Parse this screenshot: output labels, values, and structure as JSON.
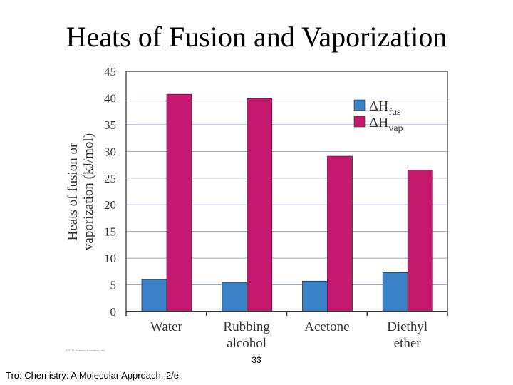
{
  "slide": {
    "title": "Heats of Fusion and Vaporization",
    "slide_number": "33",
    "footer": "Tro: Chemistry: A Molecular Approach, 2/e",
    "copyright": "© 2011 Pearson Education, Inc."
  },
  "colors": {
    "fus": "#3a82c8",
    "vap": "#c4196e",
    "grid": "#9aa9c8",
    "plot_bg": "#ffffff"
  },
  "chart_data": {
    "type": "bar",
    "ylabel_lines": [
      "Heats of fusion or",
      "vaporization (kJ/mol)"
    ],
    "ylim": [
      0,
      45
    ],
    "yticks": [
      0,
      5,
      10,
      15,
      20,
      25,
      30,
      35,
      40,
      45
    ],
    "grid": true,
    "legend_position": "top-right",
    "categories": [
      [
        "Water"
      ],
      [
        "Rubbing",
        "alcohol"
      ],
      [
        "Acetone"
      ],
      [
        "Diethyl",
        "ether"
      ]
    ],
    "series": [
      {
        "name": "ΔH",
        "subscript": "fus",
        "key": "fus",
        "values": [
          6.0,
          5.4,
          5.7,
          7.3
        ]
      },
      {
        "name": "ΔH",
        "subscript": "vap",
        "key": "vap",
        "values": [
          40.7,
          39.9,
          29.1,
          26.5
        ]
      }
    ]
  }
}
